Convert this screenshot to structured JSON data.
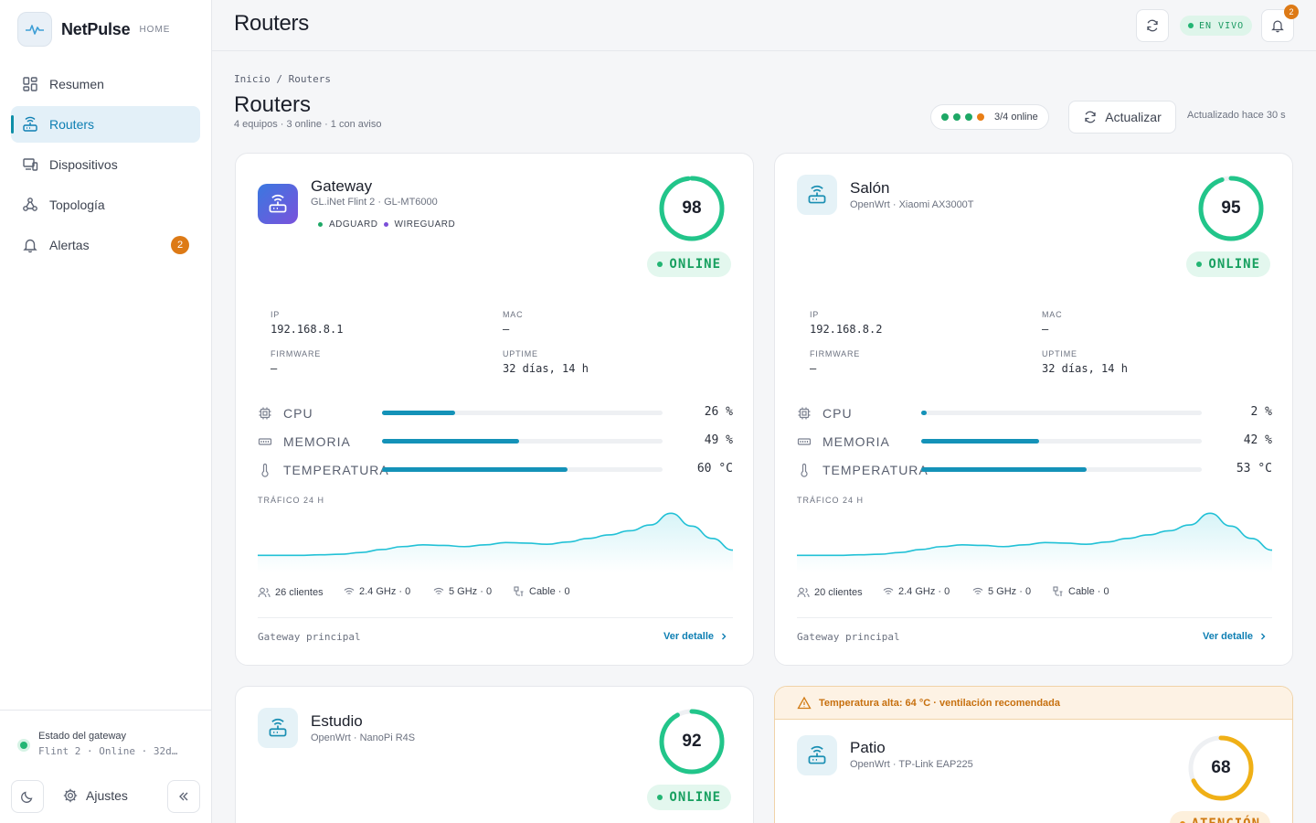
{
  "brand": {
    "name": "NetPulse",
    "tag": "HOME"
  },
  "nav": [
    {
      "label": "Resumen",
      "icon": "grid-icon"
    },
    {
      "label": "Routers",
      "icon": "router-icon",
      "active": true
    },
    {
      "label": "Dispositivos",
      "icon": "devices-icon"
    },
    {
      "label": "Topología",
      "icon": "topology-icon"
    },
    {
      "label": "Alertas",
      "icon": "bell-icon",
      "badge": "2"
    }
  ],
  "sidebar_footer": {
    "status_title": "Estado del gateway",
    "status_sub": "Flint 2 · Online · 32d…",
    "settings_label": "Ajustes"
  },
  "topbar": {
    "title": "Routers",
    "live_label": "EN VIVO",
    "notif_count": "2"
  },
  "header": {
    "breadcrumb": "Inicio / Routers",
    "title": "Routers",
    "subtitle": "4 equipos · 3 online · 1 con aviso",
    "online_summary": "3/4 online",
    "refresh_label": "Actualizar",
    "updated": "Actualizado hace 30 s",
    "dot_colors": [
      "#1ea866",
      "#1ea866",
      "#1ea866",
      "#e97e16"
    ]
  },
  "labels": {
    "ip": "IP",
    "mac": "MAC",
    "firmware": "FIRMWARE",
    "uptime": "UPTIME",
    "cpu": "CPU",
    "memory": "MEMORIA",
    "temperature": "TEMPERATURA",
    "traffic": "TRÁFICO 24 H",
    "detail": "Ver detalle"
  },
  "routers": [
    {
      "name": "Gateway",
      "model": "GL.iNet Flint 2 · GL-MT6000",
      "tags": [
        "ADGUARD",
        "WIREGUARD"
      ],
      "score": "98",
      "score_value": 98,
      "status": "ONLINE",
      "ip": "192.168.8.1",
      "mac": "—",
      "firmware": "—",
      "uptime": "32 días, 14 h",
      "cpu": "26 %",
      "cpu_value": 26,
      "memory": "49 %",
      "memory_value": 49,
      "temperature": "60 °C",
      "temperature_value": 66,
      "clients": "26 clientes",
      "wifi24": "2.4 GHz · 0",
      "wifi5": "5 GHz · 0",
      "cable": "Cable · 0",
      "footer": "Gateway principal",
      "traffic": [
        0.26,
        0.26,
        0.26,
        0.27,
        0.28,
        0.31,
        0.36,
        0.41,
        0.44,
        0.43,
        0.41,
        0.44,
        0.48,
        0.47,
        0.45,
        0.49,
        0.55,
        0.61,
        0.68,
        0.78,
        0.98,
        0.76,
        0.55,
        0.35
      ]
    },
    {
      "name": "Salón",
      "model": "OpenWrt · Xiaomi AX3000T",
      "score": "95",
      "score_value": 95,
      "status": "ONLINE",
      "ip": "192.168.8.2",
      "mac": "—",
      "firmware": "—",
      "uptime": "32 días, 14 h",
      "cpu": "2 %",
      "cpu_value": 2,
      "memory": "42 %",
      "memory_value": 42,
      "temperature": "53 °C",
      "temperature_value": 59,
      "clients": "20 clientes",
      "wifi24": "2.4 GHz · 0",
      "wifi5": "5 GHz · 0",
      "cable": "Cable · 0",
      "footer": "Gateway principal",
      "traffic": [
        0.26,
        0.26,
        0.26,
        0.27,
        0.28,
        0.31,
        0.36,
        0.41,
        0.44,
        0.43,
        0.41,
        0.44,
        0.48,
        0.47,
        0.45,
        0.49,
        0.55,
        0.61,
        0.68,
        0.78,
        0.98,
        0.76,
        0.55,
        0.35
      ]
    },
    {
      "name": "Estudio",
      "model": "OpenWrt · NanoPi R4S",
      "score": "92",
      "score_value": 92,
      "status": "ONLINE"
    },
    {
      "name": "Patio",
      "model": "OpenWrt · TP-Link EAP225",
      "score": "68",
      "score_value": 68,
      "status": "ATENCIÓN",
      "warning": "Temperatura alta: 64 °C · ventilación recomendada"
    }
  ],
  "colors": {
    "accent": "#0e7fb3",
    "online": "#22b573",
    "warning": "#e4901c",
    "bar": "#1492b8",
    "traffic_line": "#22c1d6"
  }
}
